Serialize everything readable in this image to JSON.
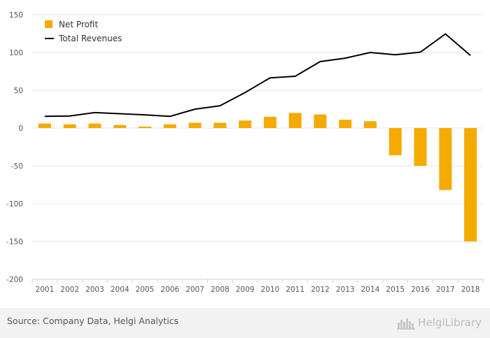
{
  "chart_data": {
    "type": "bar",
    "categories": [
      "2001",
      "2002",
      "2003",
      "2004",
      "2005",
      "2006",
      "2007",
      "2008",
      "2009",
      "2010",
      "2011",
      "2012",
      "2013",
      "2014",
      "2015",
      "2016",
      "2017",
      "2018"
    ],
    "series": [
      {
        "name": "Net Profit",
        "type": "bar",
        "color": "#f5aa00",
        "values": [
          6,
          5,
          6,
          4,
          2,
          5,
          7,
          7,
          10,
          15,
          20,
          18,
          11,
          9,
          -36,
          -50,
          -82,
          -150
        ]
      },
      {
        "name": "Total Revenues",
        "type": "line",
        "color": "#000000",
        "values": [
          15.5,
          16,
          20.5,
          19,
          17.5,
          15.5,
          25,
          29.5,
          47,
          66.5,
          68.5,
          88,
          92.5,
          100,
          97,
          100.5,
          124.5,
          96
        ]
      }
    ],
    "ylim": [
      -200,
      150
    ],
    "yticks": [
      150,
      100,
      50,
      0,
      -50,
      -100,
      -150,
      -200
    ],
    "grid": true,
    "legend_position": "top-left"
  },
  "footer": {
    "source": "Source: Company Data, Helgi Analytics",
    "brand": "HelgiLibrary"
  }
}
